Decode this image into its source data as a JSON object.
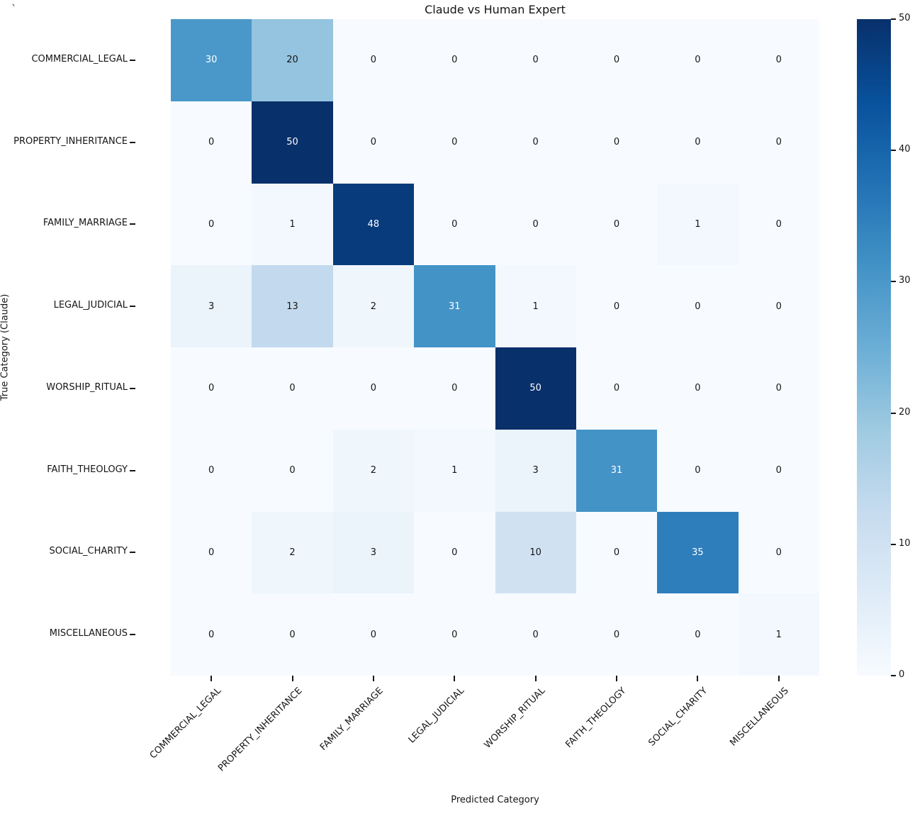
{
  "stray_mark": "`",
  "chart_data": {
    "type": "heatmap",
    "title": "Claude vs Human Expert",
    "xlabel": "Predicted Category",
    "ylabel": "True Category (Claude)",
    "categories": [
      "COMMERCIAL_LEGAL",
      "PROPERTY_INHERITANCE",
      "FAMILY_MARRIAGE",
      "LEGAL_JUDICIAL",
      "WORSHIP_RITUAL",
      "FAITH_THEOLOGY",
      "SOCIAL_CHARITY",
      "MISCELLANEOUS"
    ],
    "matrix": [
      [
        30,
        20,
        0,
        0,
        0,
        0,
        0,
        0
      ],
      [
        0,
        50,
        0,
        0,
        0,
        0,
        0,
        0
      ],
      [
        0,
        1,
        48,
        0,
        0,
        0,
        1,
        0
      ],
      [
        3,
        13,
        2,
        31,
        1,
        0,
        0,
        0
      ],
      [
        0,
        0,
        0,
        0,
        50,
        0,
        0,
        0
      ],
      [
        0,
        0,
        2,
        1,
        3,
        31,
        0,
        0
      ],
      [
        0,
        2,
        3,
        0,
        10,
        0,
        35,
        0
      ],
      [
        0,
        0,
        0,
        0,
        0,
        0,
        0,
        1
      ]
    ],
    "vmin": 0,
    "vmax": 50,
    "colorbar_ticks": [
      0,
      10,
      20,
      30,
      40,
      50
    ],
    "legend_position": "right",
    "grid": false,
    "colors": {
      "colormap_name": "Blues",
      "cmap_low": "#f7fbff",
      "cmap_high": "#08306b",
      "annotation_light": "#ffffff",
      "annotation_dark": "#151515"
    }
  }
}
